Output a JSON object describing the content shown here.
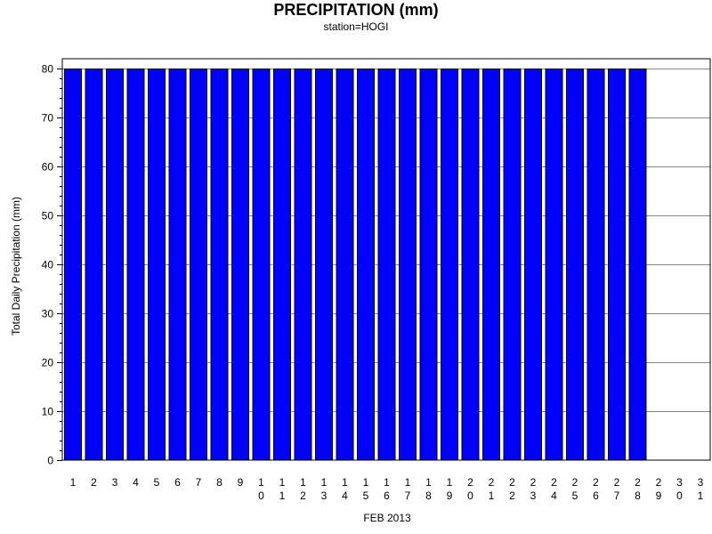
{
  "chart_data": {
    "type": "bar",
    "title": "PRECIPITATION (mm)",
    "subtitle": "station=HOGI",
    "xlabel": "FEB 2013",
    "ylabel": "Total Daily Precipitation (mm)",
    "categories": [
      "1",
      "2",
      "3",
      "4",
      "5",
      "6",
      "7",
      "8",
      "9",
      "10",
      "11",
      "12",
      "13",
      "14",
      "15",
      "16",
      "17",
      "18",
      "19",
      "20",
      "21",
      "22",
      "23",
      "24",
      "25",
      "26",
      "27",
      "28",
      "29",
      "30",
      "31"
    ],
    "values": [
      80,
      80,
      80,
      80,
      80,
      80,
      80,
      80,
      80,
      80,
      80,
      80,
      80,
      80,
      80,
      80,
      80,
      80,
      80,
      80,
      80,
      80,
      80,
      80,
      80,
      80,
      80,
      80,
      null,
      null,
      null
    ],
    "ylim": [
      0,
      80
    ],
    "yticks": [
      "0",
      "10",
      "20",
      "30",
      "40",
      "50",
      "60",
      "70",
      "80"
    ],
    "grid": true,
    "bar_color": "#0000ff",
    "bar_edge_color": "#000000"
  }
}
